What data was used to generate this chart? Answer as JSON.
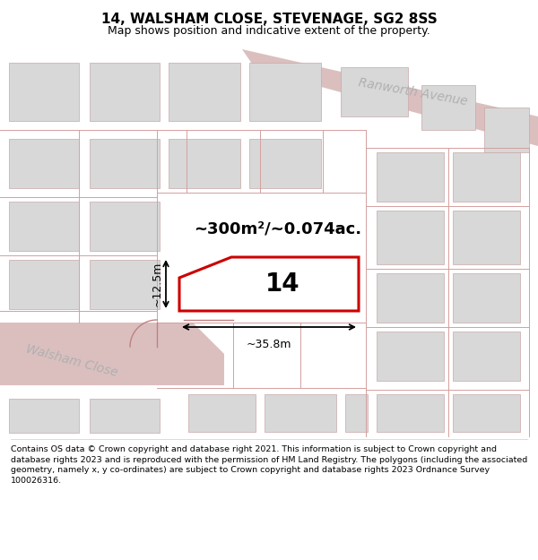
{
  "title": "14, WALSHAM CLOSE, STEVENAGE, SG2 8SS",
  "subtitle": "Map shows position and indicative extent of the property.",
  "footer": "Contains OS data © Crown copyright and database right 2021. This information is subject to Crown copyright and database rights 2023 and is reproduced with the permission of HM Land Registry. The polygons (including the associated geometry, namely x, y co-ordinates) are subject to Crown copyright and database rights 2023 Ordnance Survey 100026316.",
  "map_bg": "#f2f2f2",
  "road_fill": "#dbbfbf",
  "road_outline": "#cc9999",
  "building_fill": "#d8d8d8",
  "building_edge": "#c8a8a8",
  "highlight_color": "#cc0000",
  "area_text": "~300m²/~0.074ac.",
  "number_text": "14",
  "width_text": "~35.8m",
  "height_text": "~12.5m",
  "ranworth_avenue_label": "Ranworth Avenue",
  "walsham_close_label": "Walsham Close",
  "title_fontsize": 11,
  "subtitle_fontsize": 9,
  "footer_fontsize": 6.8,
  "pink": "#d4a0a0",
  "dark_pink": "#c08080"
}
